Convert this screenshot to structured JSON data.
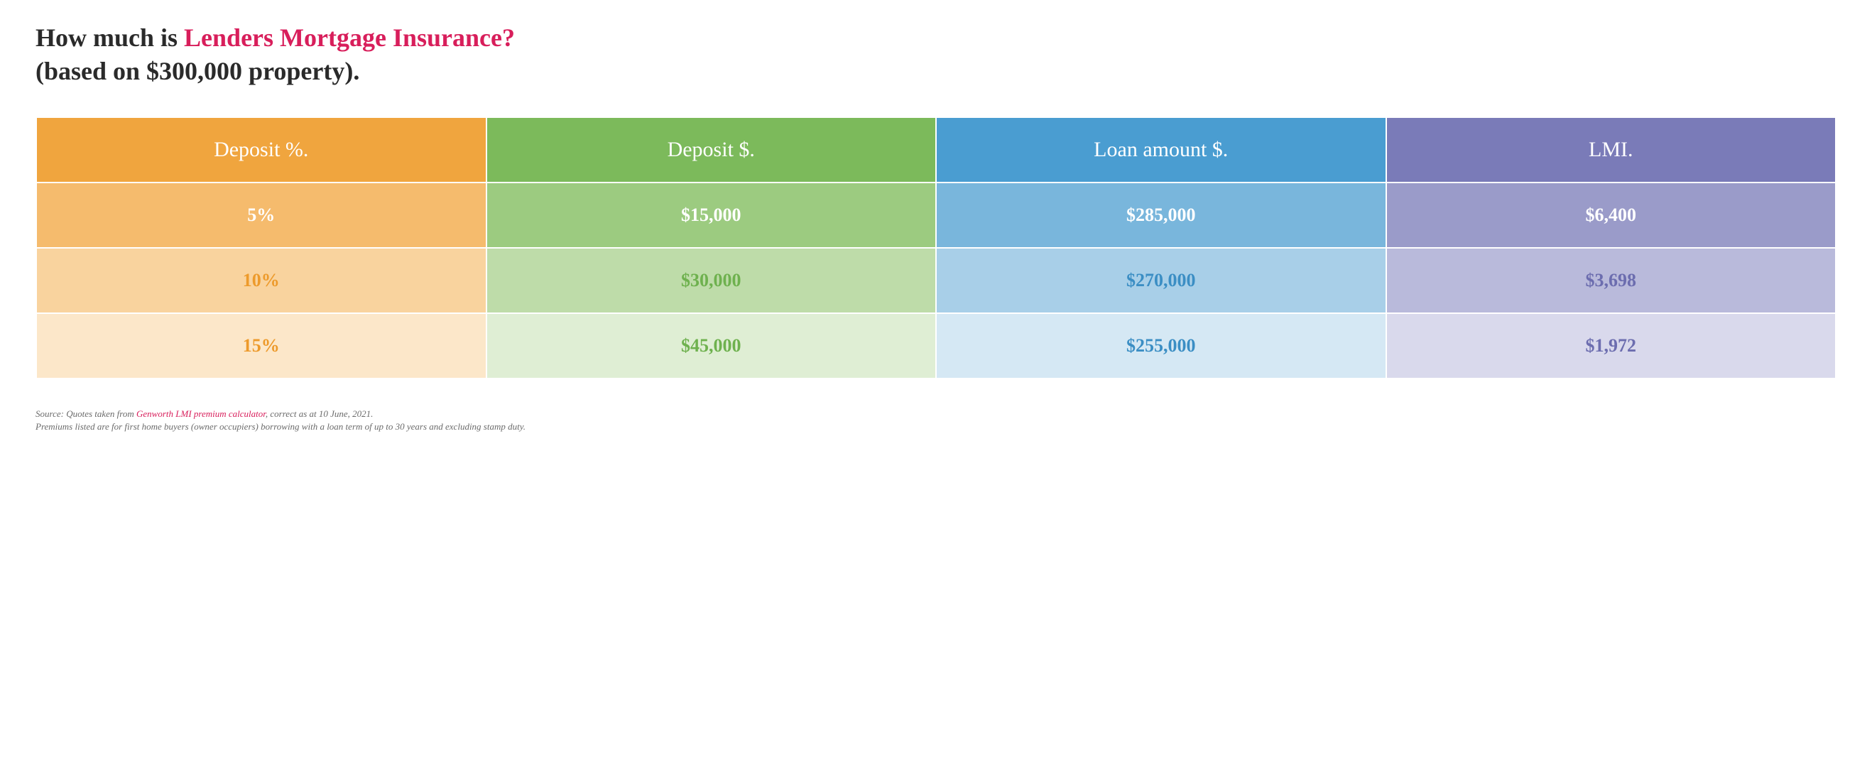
{
  "title": {
    "prefix": "How much is ",
    "highlight": "Lenders Mortgage Insurance?",
    "line2": "(based on $300,000 property)."
  },
  "table": {
    "columns": [
      {
        "label": "Deposit %.",
        "header_bg": "#f0a53e",
        "shades": [
          "#f5bb6d",
          "#f9d39e",
          "#fce7c9"
        ],
        "text_color": "#ed9a2b"
      },
      {
        "label": "Deposit $.",
        "header_bg": "#7cba5b",
        "shades": [
          "#9ccb80",
          "#bedca9",
          "#dfeed4"
        ],
        "text_color": "#6eb14e"
      },
      {
        "label": "Loan amount $.",
        "header_bg": "#4a9dd1",
        "shades": [
          "#79b6dc",
          "#a8cfe8",
          "#d5e8f4"
        ],
        "text_color": "#3b8ec4"
      },
      {
        "label": "LMI.",
        "header_bg": "#7a7bb8",
        "shades": [
          "#9a9bc9",
          "#b9baDb",
          "#d9d9ec"
        ],
        "text_color": "#6c6daf"
      }
    ],
    "rows": [
      {
        "cells": [
          "5%",
          "$15,000",
          "$285,000",
          "$6,400"
        ],
        "white_text": true
      },
      {
        "cells": [
          "10%",
          "$30,000",
          "$270,000",
          "$3,698"
        ],
        "white_text": false
      },
      {
        "cells": [
          "15%",
          "$45,000",
          "$255,000",
          "$1,972"
        ],
        "white_text": false
      }
    ],
    "header_fontsize": 30,
    "cell_fontsize": 26
  },
  "footnote": {
    "source_prefix": "Source: Quotes taken from ",
    "source_link": "Genworth LMI premium calculator",
    "source_suffix": ", correct as at 10 June, 2021.",
    "line2": "Premiums listed are for first home buyers (owner occupiers) borrowing with a loan term of up to 30 years and excluding stamp duty."
  },
  "colors": {
    "title_text": "#2a2a2a",
    "highlight": "#d81e5b",
    "footnote_text": "#6b6b6b",
    "background": "#ffffff"
  }
}
